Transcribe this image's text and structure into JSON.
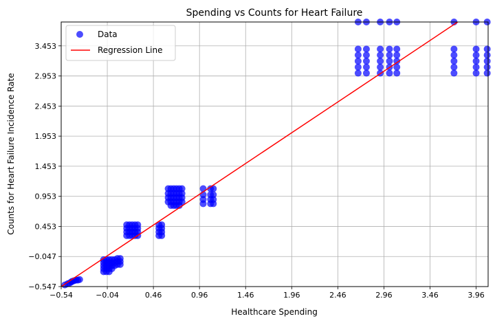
{
  "chart_data": {
    "type": "scatter",
    "title": "Spending vs Counts for Heart Failure",
    "xlabel": "Healthcare Spending",
    "ylabel": "Counts for Heart Failure Incidence Rate",
    "xlim": [
      -0.54,
      4.09
    ],
    "ylim": [
      -0.547,
      3.85
    ],
    "xticks": [
      -0.54,
      -0.04,
      0.46,
      0.96,
      1.46,
      1.96,
      2.46,
      2.96,
      3.46,
      3.96
    ],
    "xtick_labels": [
      "−0.54",
      "−0.04",
      "0.46",
      "0.96",
      "1.46",
      "1.96",
      "2.46",
      "2.96",
      "3.46",
      "3.96"
    ],
    "yticks": [
      -0.547,
      -0.047,
      0.453,
      0.953,
      1.453,
      1.953,
      2.453,
      2.953,
      3.453
    ],
    "ytick_labels": [
      "−0.547",
      "−0.047",
      "0.453",
      "0.953",
      "1.453",
      "1.953",
      "2.453",
      "2.953",
      "3.453"
    ],
    "grid": true,
    "legend_position": "top-left",
    "legend": [
      "Data",
      "Regression Line"
    ],
    "colors": {
      "data": "#0000ff",
      "regression": "#ff0000"
    },
    "series": [
      {
        "name": "Data",
        "type": "scatter",
        "points": [
          [
            -0.5,
            -0.52
          ],
          [
            -0.47,
            -0.5
          ],
          [
            -0.45,
            -0.49
          ],
          [
            -0.43,
            -0.47
          ],
          [
            -0.42,
            -0.46
          ],
          [
            -0.4,
            -0.45
          ],
          [
            -0.38,
            -0.44
          ],
          [
            -0.36,
            -0.44
          ],
          [
            -0.34,
            -0.43
          ],
          [
            -0.08,
            -0.1
          ],
          [
            -0.08,
            -0.15
          ],
          [
            -0.08,
            -0.2
          ],
          [
            -0.08,
            -0.25
          ],
          [
            -0.08,
            -0.3
          ],
          [
            -0.05,
            -0.1
          ],
          [
            -0.05,
            -0.15
          ],
          [
            -0.05,
            -0.2
          ],
          [
            -0.05,
            -0.25
          ],
          [
            -0.05,
            -0.3
          ],
          [
            -0.02,
            -0.1
          ],
          [
            -0.02,
            -0.15
          ],
          [
            -0.02,
            -0.2
          ],
          [
            -0.02,
            -0.25
          ],
          [
            -0.02,
            -0.3
          ],
          [
            0.01,
            -0.1
          ],
          [
            0.01,
            -0.15
          ],
          [
            0.01,
            -0.2
          ],
          [
            0.01,
            -0.25
          ],
          [
            0.04,
            -0.1
          ],
          [
            0.04,
            -0.15
          ],
          [
            0.04,
            -0.2
          ],
          [
            0.07,
            -0.08
          ],
          [
            0.07,
            -0.13
          ],
          [
            0.07,
            -0.18
          ],
          [
            0.1,
            -0.08
          ],
          [
            0.1,
            -0.13
          ],
          [
            0.1,
            -0.18
          ],
          [
            0.17,
            0.48
          ],
          [
            0.17,
            0.42
          ],
          [
            0.17,
            0.36
          ],
          [
            0.17,
            0.3
          ],
          [
            0.2,
            0.48
          ],
          [
            0.2,
            0.42
          ],
          [
            0.2,
            0.36
          ],
          [
            0.2,
            0.3
          ],
          [
            0.23,
            0.48
          ],
          [
            0.23,
            0.42
          ],
          [
            0.23,
            0.36
          ],
          [
            0.23,
            0.3
          ],
          [
            0.26,
            0.48
          ],
          [
            0.26,
            0.42
          ],
          [
            0.26,
            0.36
          ],
          [
            0.26,
            0.3
          ],
          [
            0.29,
            0.48
          ],
          [
            0.29,
            0.42
          ],
          [
            0.29,
            0.36
          ],
          [
            0.29,
            0.3
          ],
          [
            0.52,
            0.48
          ],
          [
            0.52,
            0.42
          ],
          [
            0.52,
            0.36
          ],
          [
            0.52,
            0.3
          ],
          [
            0.55,
            0.48
          ],
          [
            0.55,
            0.42
          ],
          [
            0.55,
            0.36
          ],
          [
            0.55,
            0.3
          ],
          [
            0.62,
            1.08
          ],
          [
            0.62,
            1.0
          ],
          [
            0.62,
            0.93
          ],
          [
            0.62,
            0.86
          ],
          [
            0.65,
            1.08
          ],
          [
            0.65,
            1.0
          ],
          [
            0.65,
            0.93
          ],
          [
            0.65,
            0.86
          ],
          [
            0.65,
            0.8
          ],
          [
            0.68,
            1.08
          ],
          [
            0.68,
            1.0
          ],
          [
            0.68,
            0.93
          ],
          [
            0.68,
            0.86
          ],
          [
            0.68,
            0.8
          ],
          [
            0.71,
            1.08
          ],
          [
            0.71,
            1.0
          ],
          [
            0.71,
            0.93
          ],
          [
            0.71,
            0.86
          ],
          [
            0.71,
            0.8
          ],
          [
            0.74,
            1.08
          ],
          [
            0.74,
            1.0
          ],
          [
            0.74,
            0.93
          ],
          [
            0.74,
            0.86
          ],
          [
            0.74,
            0.8
          ],
          [
            0.77,
            1.08
          ],
          [
            0.77,
            1.0
          ],
          [
            0.77,
            0.93
          ],
          [
            0.77,
            0.86
          ],
          [
            1.0,
            1.08
          ],
          [
            1.0,
            0.98
          ],
          [
            1.0,
            0.9
          ],
          [
            1.0,
            0.83
          ],
          [
            1.08,
            1.08
          ],
          [
            1.08,
            0.98
          ],
          [
            1.08,
            0.9
          ],
          [
            1.08,
            0.83
          ],
          [
            1.11,
            1.08
          ],
          [
            1.11,
            0.98
          ],
          [
            1.11,
            0.9
          ],
          [
            1.11,
            0.83
          ],
          [
            2.68,
            3.85
          ],
          [
            2.68,
            3.4
          ],
          [
            2.68,
            3.3
          ],
          [
            2.68,
            3.2
          ],
          [
            2.68,
            3.1
          ],
          [
            2.68,
            3.0
          ],
          [
            2.77,
            3.85
          ],
          [
            2.77,
            3.4
          ],
          [
            2.77,
            3.3
          ],
          [
            2.77,
            3.2
          ],
          [
            2.77,
            3.1
          ],
          [
            2.77,
            3.0
          ],
          [
            2.92,
            3.85
          ],
          [
            2.92,
            3.4
          ],
          [
            2.92,
            3.3
          ],
          [
            2.92,
            3.2
          ],
          [
            2.92,
            3.1
          ],
          [
            2.92,
            3.0
          ],
          [
            3.02,
            3.85
          ],
          [
            3.02,
            3.4
          ],
          [
            3.02,
            3.3
          ],
          [
            3.02,
            3.2
          ],
          [
            3.02,
            3.1
          ],
          [
            3.02,
            3.0
          ],
          [
            3.1,
            3.85
          ],
          [
            3.1,
            3.4
          ],
          [
            3.1,
            3.3
          ],
          [
            3.1,
            3.2
          ],
          [
            3.1,
            3.1
          ],
          [
            3.1,
            3.0
          ],
          [
            3.72,
            3.85
          ],
          [
            3.72,
            3.4
          ],
          [
            3.72,
            3.3
          ],
          [
            3.72,
            3.2
          ],
          [
            3.72,
            3.1
          ],
          [
            3.72,
            3.0
          ],
          [
            3.96,
            3.85
          ],
          [
            3.96,
            3.4
          ],
          [
            3.96,
            3.3
          ],
          [
            3.96,
            3.2
          ],
          [
            3.96,
            3.1
          ],
          [
            3.96,
            3.0
          ],
          [
            4.08,
            3.85
          ],
          [
            4.08,
            3.4
          ],
          [
            4.08,
            3.3
          ],
          [
            4.08,
            3.2
          ],
          [
            4.08,
            3.1
          ],
          [
            4.08,
            3.0
          ]
        ]
      },
      {
        "name": "Regression Line",
        "type": "line",
        "points": [
          [
            -0.54,
            -0.547
          ],
          [
            3.76,
            3.85
          ]
        ]
      }
    ]
  }
}
